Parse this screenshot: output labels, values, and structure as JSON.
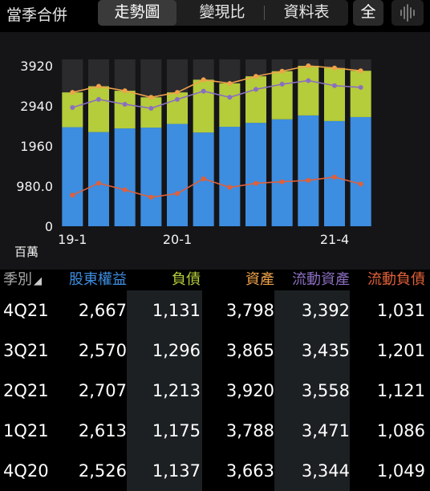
{
  "topbar": {
    "category": "當季合併",
    "tabs": [
      {
        "label": "走勢圖",
        "active": true
      },
      {
        "label": "變現比",
        "active": false
      },
      {
        "label": "資料表",
        "active": false
      }
    ],
    "all_label": "全",
    "wave_icon": "waveform-icon"
  },
  "chart_data": {
    "type": "bar",
    "unit_label": "百萬",
    "y_ticks": [
      "3920",
      "2940",
      "1960",
      "980.0",
      "0"
    ],
    "ylim": [
      0,
      3920
    ],
    "x_tick_labels": [
      {
        "index": 0,
        "label": "19-1"
      },
      {
        "index": 4,
        "label": "20-1"
      },
      {
        "index": 10,
        "label": "21-4"
      }
    ],
    "categories": [
      "1Q19",
      "2Q19",
      "3Q19",
      "4Q19",
      "1Q20",
      "2Q20",
      "3Q20",
      "4Q20",
      "1Q21",
      "2Q21",
      "3Q21",
      "4Q21"
    ],
    "series": [
      {
        "kind": "stack-bottom",
        "color": "#3d8de0",
        "values": [
          2420,
          2300,
          2390,
          2410,
          2500,
          2290,
          2430,
          2526,
          2613,
          2707,
          2570,
          2667
        ]
      },
      {
        "kind": "stack-top",
        "color": "#b5cc3b",
        "values": [
          850,
          1120,
          920,
          740,
          770,
          1290,
          1060,
          1137,
          1175,
          1213,
          1296,
          1131
        ]
      },
      {
        "kind": "line",
        "color": "#f0a24a",
        "values": [
          3270,
          3420,
          3310,
          3150,
          3270,
          3580,
          3490,
          3663,
          3788,
          3920,
          3865,
          3798
        ]
      },
      {
        "kind": "line",
        "color": "#8a6fc0",
        "values": [
          2900,
          3100,
          2980,
          2880,
          3100,
          3300,
          3150,
          3344,
          3471,
          3558,
          3435,
          3392
        ]
      },
      {
        "kind": "line",
        "color": "#e0603a",
        "values": [
          760,
          1050,
          890,
          710,
          800,
          1160,
          950,
          1049,
          1086,
          1121,
          1201,
          1031
        ]
      }
    ]
  },
  "table": {
    "columns": [
      {
        "label": "季別",
        "color": "#aaaaaa"
      },
      {
        "label": "股東權益",
        "color": "#3d8de0"
      },
      {
        "label": "負債",
        "color": "#b5cc3b"
      },
      {
        "label": "資產",
        "color": "#f0a24a"
      },
      {
        "label": "流動資產",
        "color": "#8a6fc0"
      },
      {
        "label": "流動負債",
        "color": "#e0603a"
      }
    ],
    "sort_icon": "sort-triangle-icon",
    "rows": [
      [
        "4Q21",
        "2,667",
        "1,131",
        "3,798",
        "3,392",
        "1,031"
      ],
      [
        "3Q21",
        "2,570",
        "1,296",
        "3,865",
        "3,435",
        "1,201"
      ],
      [
        "2Q21",
        "2,707",
        "1,213",
        "3,920",
        "3,558",
        "1,121"
      ],
      [
        "1Q21",
        "2,613",
        "1,175",
        "3,788",
        "3,471",
        "1,086"
      ],
      [
        "4Q20",
        "2,526",
        "1,137",
        "3,663",
        "3,344",
        "1,049"
      ]
    ]
  }
}
